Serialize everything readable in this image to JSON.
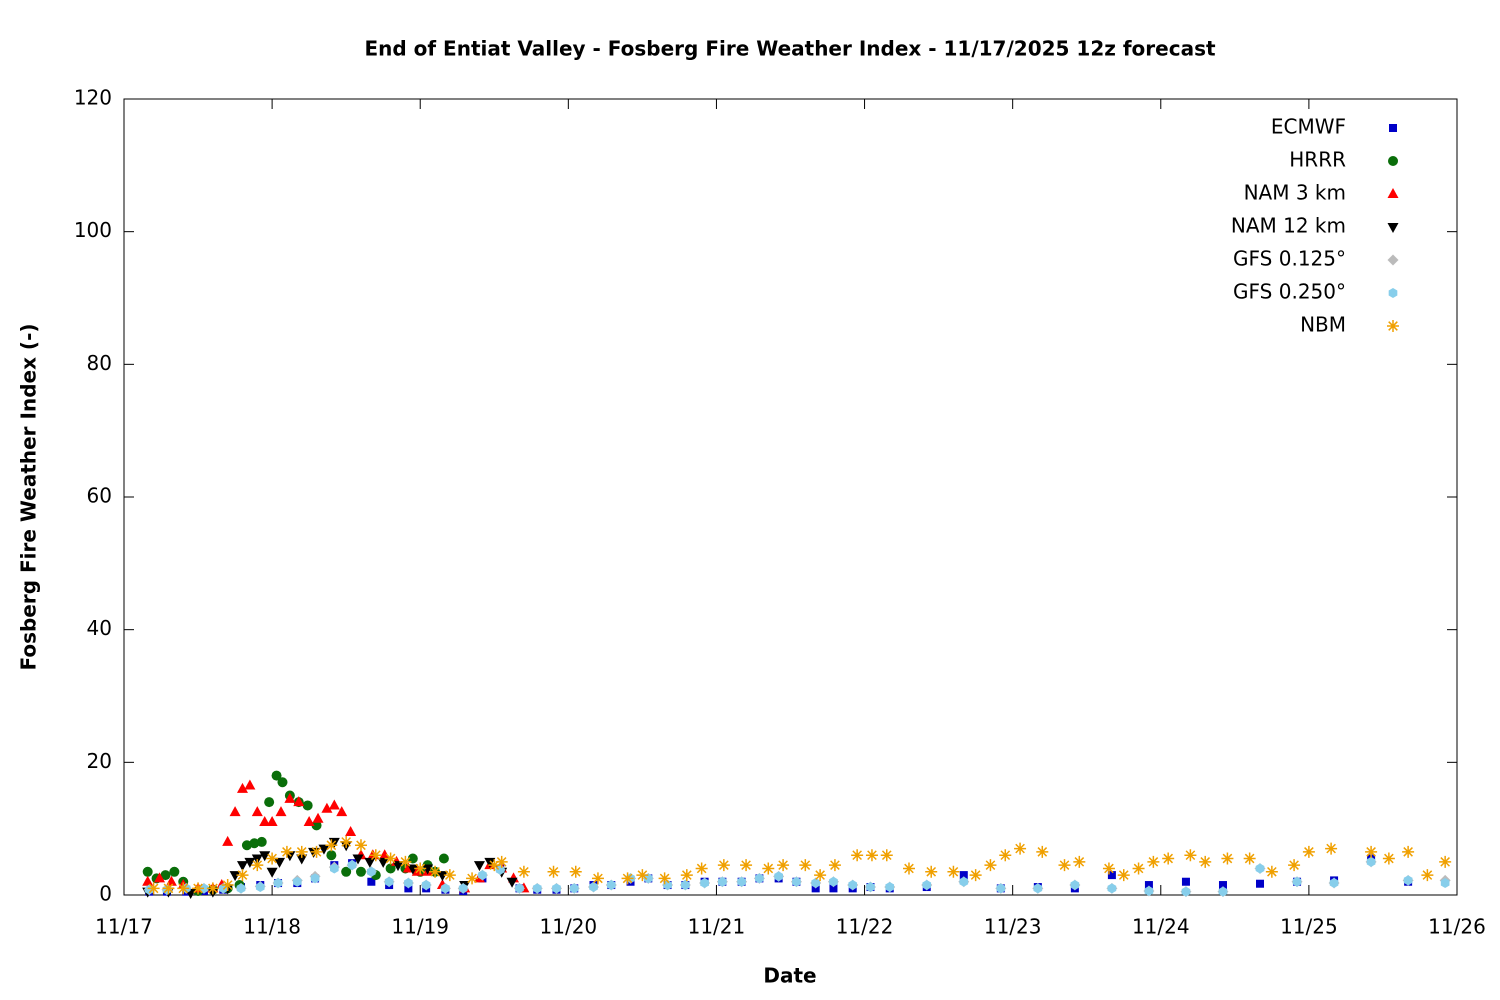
{
  "chart_data": {
    "type": "scatter",
    "title": "End of Entiat Valley - Fosberg Fire Weather Index - 11/17/2025 12z forecast",
    "x_label": "Date",
    "y_label": "Fosberg Fire Weather Index (-)",
    "xlim": [
      0,
      9
    ],
    "xticks": [
      {
        "value": 0,
        "label": "11/17"
      },
      {
        "value": 1,
        "label": "11/18"
      },
      {
        "value": 2,
        "label": "11/19"
      },
      {
        "value": 3,
        "label": "11/20"
      },
      {
        "value": 4,
        "label": "11/21"
      },
      {
        "value": 5,
        "label": "11/22"
      },
      {
        "value": 6,
        "label": "11/23"
      },
      {
        "value": 7,
        "label": "11/24"
      },
      {
        "value": 8,
        "label": "11/25"
      },
      {
        "value": 9,
        "label": "11/26"
      }
    ],
    "ylim": [
      0,
      120
    ],
    "yticks": [
      0,
      20,
      40,
      60,
      80,
      100,
      120
    ],
    "grid": false,
    "legend": "top-right",
    "series": [
      {
        "name": "ECMWF",
        "color": "#0000c8",
        "marker": "square",
        "x": [
          0.17,
          0.29,
          0.42,
          0.54,
          0.67,
          0.79,
          0.92,
          1.04,
          1.17,
          1.29,
          1.42,
          1.54,
          1.67,
          1.79,
          1.92,
          2.04,
          2.17,
          2.29,
          2.42,
          2.54,
          2.67,
          2.79,
          2.92,
          3.04,
          3.17,
          3.29,
          3.42,
          3.54,
          3.67,
          3.79,
          3.92,
          4.04,
          4.17,
          4.29,
          4.42,
          4.54,
          4.67,
          4.79,
          4.92,
          5.04,
          5.17,
          5.42,
          5.67,
          5.92,
          6.17,
          6.42,
          6.67,
          6.92,
          7.17,
          7.42,
          7.67,
          7.92,
          8.17,
          8.42,
          8.67
        ],
        "values": [
          0.5,
          0.5,
          0.5,
          0.6,
          0.8,
          1.2,
          1.5,
          1.8,
          1.8,
          2.5,
          4.5,
          4.8,
          2.0,
          1.5,
          1.0,
          1.0,
          0.8,
          0.6,
          2.5,
          4.0,
          1.0,
          0.8,
          0.8,
          1.0,
          1.5,
          1.5,
          2.0,
          2.5,
          1.5,
          1.5,
          2.0,
          2.0,
          2.0,
          2.5,
          2.5,
          2.0,
          1.0,
          1.0,
          1.0,
          1.2,
          1.0,
          1.2,
          3.0,
          1.0,
          1.2,
          1.0,
          3.0,
          1.5,
          2.0,
          1.5,
          1.7,
          2.0,
          2.2,
          5.5,
          2.0
        ]
      },
      {
        "name": "HRRR",
        "color": "#0a6e0a",
        "marker": "circle",
        "x": [
          0.16,
          0.22,
          0.28,
          0.34,
          0.4,
          0.5,
          0.6,
          0.7,
          0.78,
          0.83,
          0.88,
          0.93,
          0.98,
          1.03,
          1.07,
          1.12,
          1.18,
          1.24,
          1.3,
          1.4,
          1.5,
          1.6,
          1.7,
          1.8,
          1.9,
          1.95,
          2.0,
          2.05,
          2.1,
          2.16
        ],
        "values": [
          3.5,
          2.5,
          3,
          3.5,
          2,
          0.6,
          0.8,
          1,
          1.5,
          7.5,
          7.8,
          8,
          14,
          18,
          17,
          15,
          14,
          13.5,
          10.5,
          6,
          3.5,
          3.5,
          3,
          4,
          4,
          5.5,
          3.5,
          4.5,
          3.5,
          5.5
        ]
      },
      {
        "name": "NAM 3 km",
        "color": "#ff0000",
        "marker": "triangle-up",
        "x": [
          0.16,
          0.24,
          0.32,
          0.4,
          0.5,
          0.6,
          0.66,
          0.7,
          0.75,
          0.8,
          0.85,
          0.9,
          0.95,
          1.0,
          1.06,
          1.12,
          1.18,
          1.25,
          1.31,
          1.37,
          1.42,
          1.47,
          1.53,
          1.6,
          1.68,
          1.76,
          1.84,
          1.92,
          1.98,
          2.05,
          2.15,
          2.3,
          2.4,
          2.47,
          2.55,
          2.63,
          2.7
        ],
        "values": [
          2,
          2.5,
          2,
          1.5,
          1,
          1,
          1.5,
          8,
          12.5,
          16,
          16.5,
          12.5,
          11,
          11,
          12.5,
          14.5,
          14,
          11,
          11.5,
          13,
          13.5,
          12.5,
          9.5,
          6,
          6,
          6,
          5,
          4,
          3.5,
          3.5,
          1.5,
          1,
          2.5,
          4.5,
          4,
          2.5,
          1
        ]
      },
      {
        "name": "NAM 12 km",
        "color": "#000000",
        "marker": "triangle-down",
        "x": [
          0.16,
          0.3,
          0.45,
          0.6,
          0.7,
          0.75,
          0.8,
          0.85,
          0.9,
          0.95,
          1.0,
          1.05,
          1.12,
          1.2,
          1.28,
          1.35,
          1.42,
          1.5,
          1.58,
          1.66,
          1.75,
          1.85,
          1.95,
          2.05,
          2.15,
          2.3,
          2.4,
          2.47,
          2.55,
          2.62
        ],
        "values": [
          0.5,
          0.5,
          0.3,
          0.5,
          1,
          3,
          4.5,
          5,
          5.5,
          6,
          3.5,
          5,
          6,
          5.5,
          6.5,
          7,
          8,
          7.5,
          5.5,
          5,
          5,
          4.5,
          4,
          4,
          3,
          1.5,
          4.5,
          5,
          3.5,
          2
        ]
      },
      {
        "name": "GFS 0.125°",
        "color": "#bbbbbb",
        "marker": "diamond",
        "x": [
          0.17,
          0.29,
          0.42,
          0.54,
          0.67,
          0.79,
          0.92,
          1.04,
          1.17,
          1.29,
          1.42,
          1.54,
          1.67,
          1.79,
          1.92,
          2.04,
          2.17,
          2.29,
          2.42,
          2.54,
          2.67,
          2.79,
          2.92,
          3.04,
          3.17,
          3.29,
          3.42,
          3.54,
          3.67,
          3.79,
          3.92,
          4.04,
          4.17,
          4.29,
          4.42,
          4.54,
          4.67,
          4.79,
          4.92,
          5.04,
          5.17,
          5.42,
          5.67,
          5.92,
          6.17,
          6.42,
          6.67,
          6.92,
          7.17,
          7.42,
          7.67,
          7.92,
          8.17,
          8.42,
          8.67,
          8.92
        ],
        "values": [
          0.8,
          0.8,
          1.0,
          1.0,
          1.0,
          1.0,
          1.3,
          1.8,
          2.2,
          2.8,
          4.2,
          4.5,
          3.5,
          2.0,
          1.8,
          1.5,
          1.0,
          1.0,
          3.0,
          3.8,
          1.0,
          1.0,
          1.0,
          1.0,
          1.2,
          1.5,
          2.5,
          2.5,
          1.5,
          1.5,
          1.8,
          2.0,
          2.0,
          2.5,
          2.8,
          2.0,
          1.8,
          2.0,
          1.5,
          1.2,
          1.2,
          1.5,
          2.0,
          1.0,
          1.0,
          1.5,
          1.0,
          0.6,
          0.5,
          0.5,
          4.0,
          2.0,
          1.8,
          5.0,
          2.2,
          2.2
        ]
      },
      {
        "name": "GFS 0.250°",
        "color": "#87ceeb",
        "marker": "hexagon",
        "x": [
          0.17,
          0.29,
          0.42,
          0.54,
          0.67,
          0.79,
          0.92,
          1.04,
          1.17,
          1.29,
          1.42,
          1.54,
          1.67,
          1.79,
          1.92,
          2.04,
          2.17,
          2.29,
          2.42,
          2.54,
          2.67,
          2.79,
          2.92,
          3.04,
          3.17,
          3.29,
          3.42,
          3.54,
          3.67,
          3.79,
          3.92,
          4.04,
          4.17,
          4.29,
          4.42,
          4.54,
          4.67,
          4.79,
          4.92,
          5.04,
          5.17,
          5.42,
          5.67,
          5.92,
          6.17,
          6.42,
          6.67,
          6.92,
          7.17,
          7.42,
          7.67,
          7.92,
          8.17,
          8.42,
          8.67,
          8.92
        ],
        "values": [
          0.8,
          0.8,
          1.0,
          1.0,
          1.0,
          1.0,
          1.2,
          1.8,
          2.0,
          2.5,
          4.0,
          4.5,
          3.5,
          2.0,
          1.8,
          1.5,
          1.0,
          1.0,
          3.0,
          3.8,
          1.0,
          1.0,
          1.0,
          1.0,
          1.2,
          1.5,
          2.5,
          2.5,
          1.5,
          1.5,
          1.8,
          2.0,
          2.0,
          2.5,
          2.8,
          2.0,
          1.8,
          2.0,
          1.5,
          1.2,
          1.2,
          1.5,
          2.0,
          1.0,
          1.0,
          1.5,
          1.0,
          0.6,
          0.5,
          0.5,
          4.0,
          2.0,
          1.8,
          5.0,
          2.2,
          1.8
        ]
      },
      {
        "name": "NBM",
        "color": "#f0a000",
        "marker": "asterisk",
        "x": [
          0.2,
          0.3,
          0.4,
          0.5,
          0.6,
          0.7,
          0.8,
          0.9,
          1.0,
          1.1,
          1.2,
          1.3,
          1.4,
          1.5,
          1.6,
          1.7,
          1.8,
          1.9,
          2.0,
          2.1,
          2.2,
          2.35,
          2.5,
          2.55,
          2.7,
          2.9,
          3.05,
          3.2,
          3.4,
          3.5,
          3.65,
          3.8,
          3.9,
          4.05,
          4.2,
          4.35,
          4.45,
          4.6,
          4.7,
          4.8,
          4.95,
          5.05,
          5.15,
          5.3,
          5.45,
          5.6,
          5.75,
          5.85,
          5.95,
          6.05,
          6.2,
          6.35,
          6.45,
          6.65,
          6.75,
          6.85,
          6.95,
          7.05,
          7.2,
          7.3,
          7.45,
          7.6,
          7.75,
          7.9,
          8.0,
          8.15,
          8.42,
          8.54,
          8.67,
          8.8,
          8.92
        ],
        "values": [
          1,
          1,
          1,
          1,
          1,
          1.5,
          3,
          4.5,
          5.5,
          6.5,
          6.5,
          6.5,
          7.5,
          8,
          7.5,
          6,
          5.5,
          5,
          4,
          3.5,
          3,
          2.5,
          4.5,
          5,
          3.5,
          3.5,
          3.5,
          2.5,
          2.5,
          3,
          2.5,
          3,
          4,
          4.5,
          4.5,
          4,
          4.5,
          4.5,
          3,
          4.5,
          6,
          6,
          6,
          4,
          3.5,
          3.5,
          3,
          4.5,
          6,
          7,
          6.5,
          4.5,
          5,
          4,
          3,
          4,
          5,
          5.5,
          6,
          5,
          5.5,
          5.5,
          3.5,
          4.5,
          6.5,
          7,
          6.5,
          5.5,
          6.5,
          3,
          5
        ]
      }
    ]
  }
}
